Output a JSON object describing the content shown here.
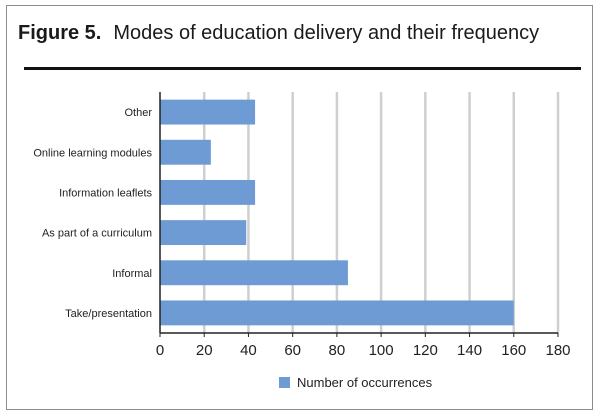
{
  "figure": {
    "label": "Figure 5.",
    "title": "Modes of education delivery and their frequency"
  },
  "colors": {
    "bar": "#6f9bd4",
    "grid": "#cfcfcf",
    "axis": "#222222",
    "rule": "#111111"
  },
  "chart_data": {
    "type": "bar",
    "orientation": "horizontal",
    "categories": [
      "Other",
      "Online learning modules",
      "Information leaflets",
      "As part of a curriculum",
      "Informal",
      "Take/presentation"
    ],
    "series": [
      {
        "name": "Number of occurrences",
        "values": [
          43,
          23,
          43,
          39,
          85,
          160
        ]
      }
    ],
    "xlim": [
      0,
      180
    ],
    "xticks": [
      0,
      20,
      40,
      60,
      80,
      100,
      120,
      140,
      160,
      180
    ],
    "grid": true,
    "legend": "bottom-center"
  }
}
